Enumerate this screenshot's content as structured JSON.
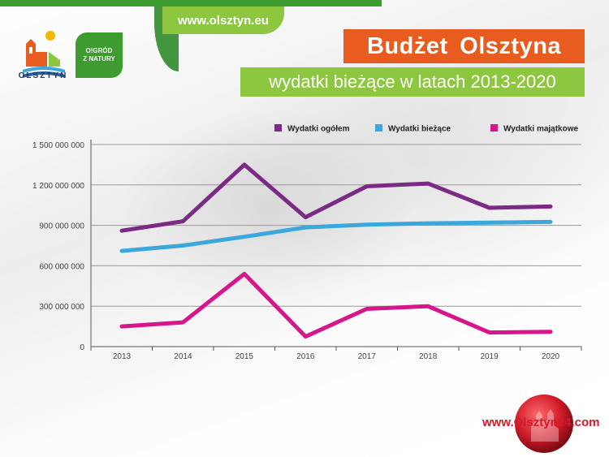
{
  "header": {
    "url_tab": "www.olsztyn.eu",
    "logo_city_text": "OLSZTYN",
    "logo_ogrod_line1": "O!GRÓD",
    "logo_ogrod_line2": "Z NATURY",
    "title": "Budżet Olsztyna",
    "subtitle": "wydatki bieżące w latach 2013-2020"
  },
  "footer": {
    "site_text": "www.Olsztyn24.com"
  },
  "colors": {
    "title_bg": "#e85c1f",
    "subtitle_bg": "#8dc63f",
    "series_total": "#7b2a86",
    "series_current": "#3aa7dd",
    "series_capital": "#d6168a"
  },
  "chart_data": {
    "type": "line",
    "title": "",
    "xlabel": "",
    "ylabel": "",
    "x": [
      "2013",
      "2014",
      "2015",
      "2016",
      "2017",
      "2018",
      "2019",
      "2020"
    ],
    "ylim": [
      0,
      1500000000
    ],
    "yticks": [
      0,
      300000000,
      600000000,
      900000000,
      1200000000,
      1500000000
    ],
    "ytick_labels": [
      "0",
      "300 000 000",
      "600 000 000",
      "900 000 000",
      "1 200 000 000",
      "1 500 000 000"
    ],
    "grid": "horizontal",
    "legend_position": "top",
    "series": [
      {
        "name": "Wydatki ogółem",
        "color": "#7b2a86",
        "values": [
          860000000,
          930000000,
          1350000000,
          960000000,
          1190000000,
          1210000000,
          1030000000,
          1040000000
        ]
      },
      {
        "name": "Wydatki bieżące",
        "color": "#3aa7dd",
        "values": [
          710000000,
          750000000,
          815000000,
          885000000,
          905000000,
          915000000,
          920000000,
          925000000
        ]
      },
      {
        "name": "Wydatki majątkowe",
        "color": "#d6168a",
        "values": [
          150000000,
          180000000,
          540000000,
          75000000,
          280000000,
          300000000,
          105000000,
          110000000
        ]
      }
    ]
  }
}
